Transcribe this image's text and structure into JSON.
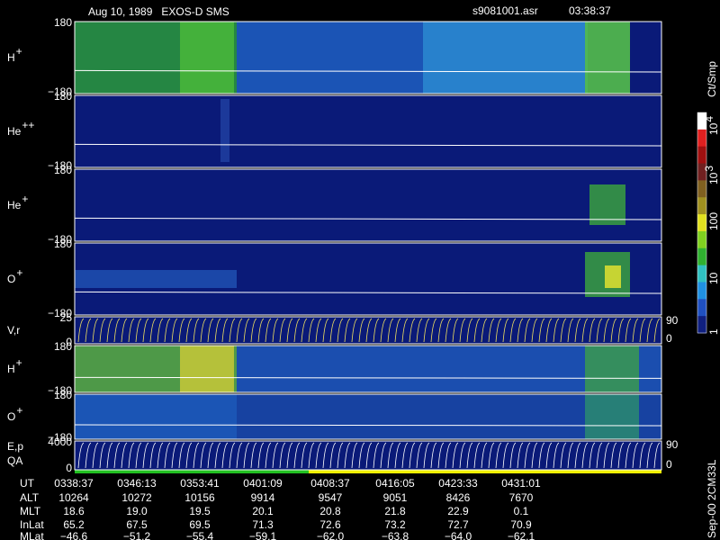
{
  "header": {
    "title": "Aug 10, 1989   EXOS-D SMS",
    "file": "s9081001.asr",
    "time": "03:38:37"
  },
  "panels": [
    {
      "ion": "H",
      "charge": "+",
      "yticks": [
        "180",
        "−180"
      ]
    },
    {
      "ion": "He",
      "charge": "++",
      "yticks": [
        "180",
        "−180"
      ]
    },
    {
      "ion": "He",
      "charge": "+",
      "yticks": [
        "180",
        "−180"
      ]
    },
    {
      "ion": "O",
      "charge": "+",
      "yticks": [
        "180",
        "−180"
      ]
    },
    {
      "ion": "V,r",
      "yticks": [
        "25",
        "0"
      ],
      "right_ticks": [
        "90",
        "0"
      ]
    },
    {
      "ion": "H",
      "charge": "+",
      "yticks": [
        "180",
        "−180"
      ]
    },
    {
      "ion": "O",
      "charge": "+",
      "yticks": [
        "180",
        "−180"
      ]
    },
    {
      "ion": "E,p",
      "sublabel": "QA",
      "yticks": [
        "4000",
        "0"
      ],
      "right_ticks": [
        "90",
        "0"
      ]
    }
  ],
  "colorbar": {
    "title": "Ct/Smp",
    "labels": [
      {
        "base": "10",
        "exp": "4"
      },
      {
        "base": "10",
        "exp": "3"
      },
      {
        "base": "100"
      },
      {
        "base": "10"
      },
      {
        "base": "1"
      }
    ]
  },
  "table": {
    "row_labels": [
      "UT",
      "ALT",
      "MLT",
      "InLat",
      "MLat"
    ],
    "rows": [
      [
        "0338:37",
        "0346:13",
        "0353:41",
        "0401:09",
        "0408:37",
        "0416:05",
        "0423:33",
        "0431:01"
      ],
      [
        "10264",
        "10272",
        "10156",
        "9914",
        "9547",
        "9051",
        "8426",
        "7670"
      ],
      [
        "18.6",
        "19.0",
        "19.5",
        "20.1",
        "20.8",
        "21.8",
        "22.9",
        "0.1"
      ],
      [
        "65.2",
        "67.5",
        "69.5",
        "71.3",
        "72.6",
        "73.2",
        "72.7",
        "70.9"
      ],
      [
        "−46.6",
        "−51.2",
        "−55.4",
        "−59.1",
        "−62.0",
        "−63.8",
        "−64.0",
        "−62.1"
      ]
    ]
  },
  "footer_note": "Sep-00 2CM33L"
}
